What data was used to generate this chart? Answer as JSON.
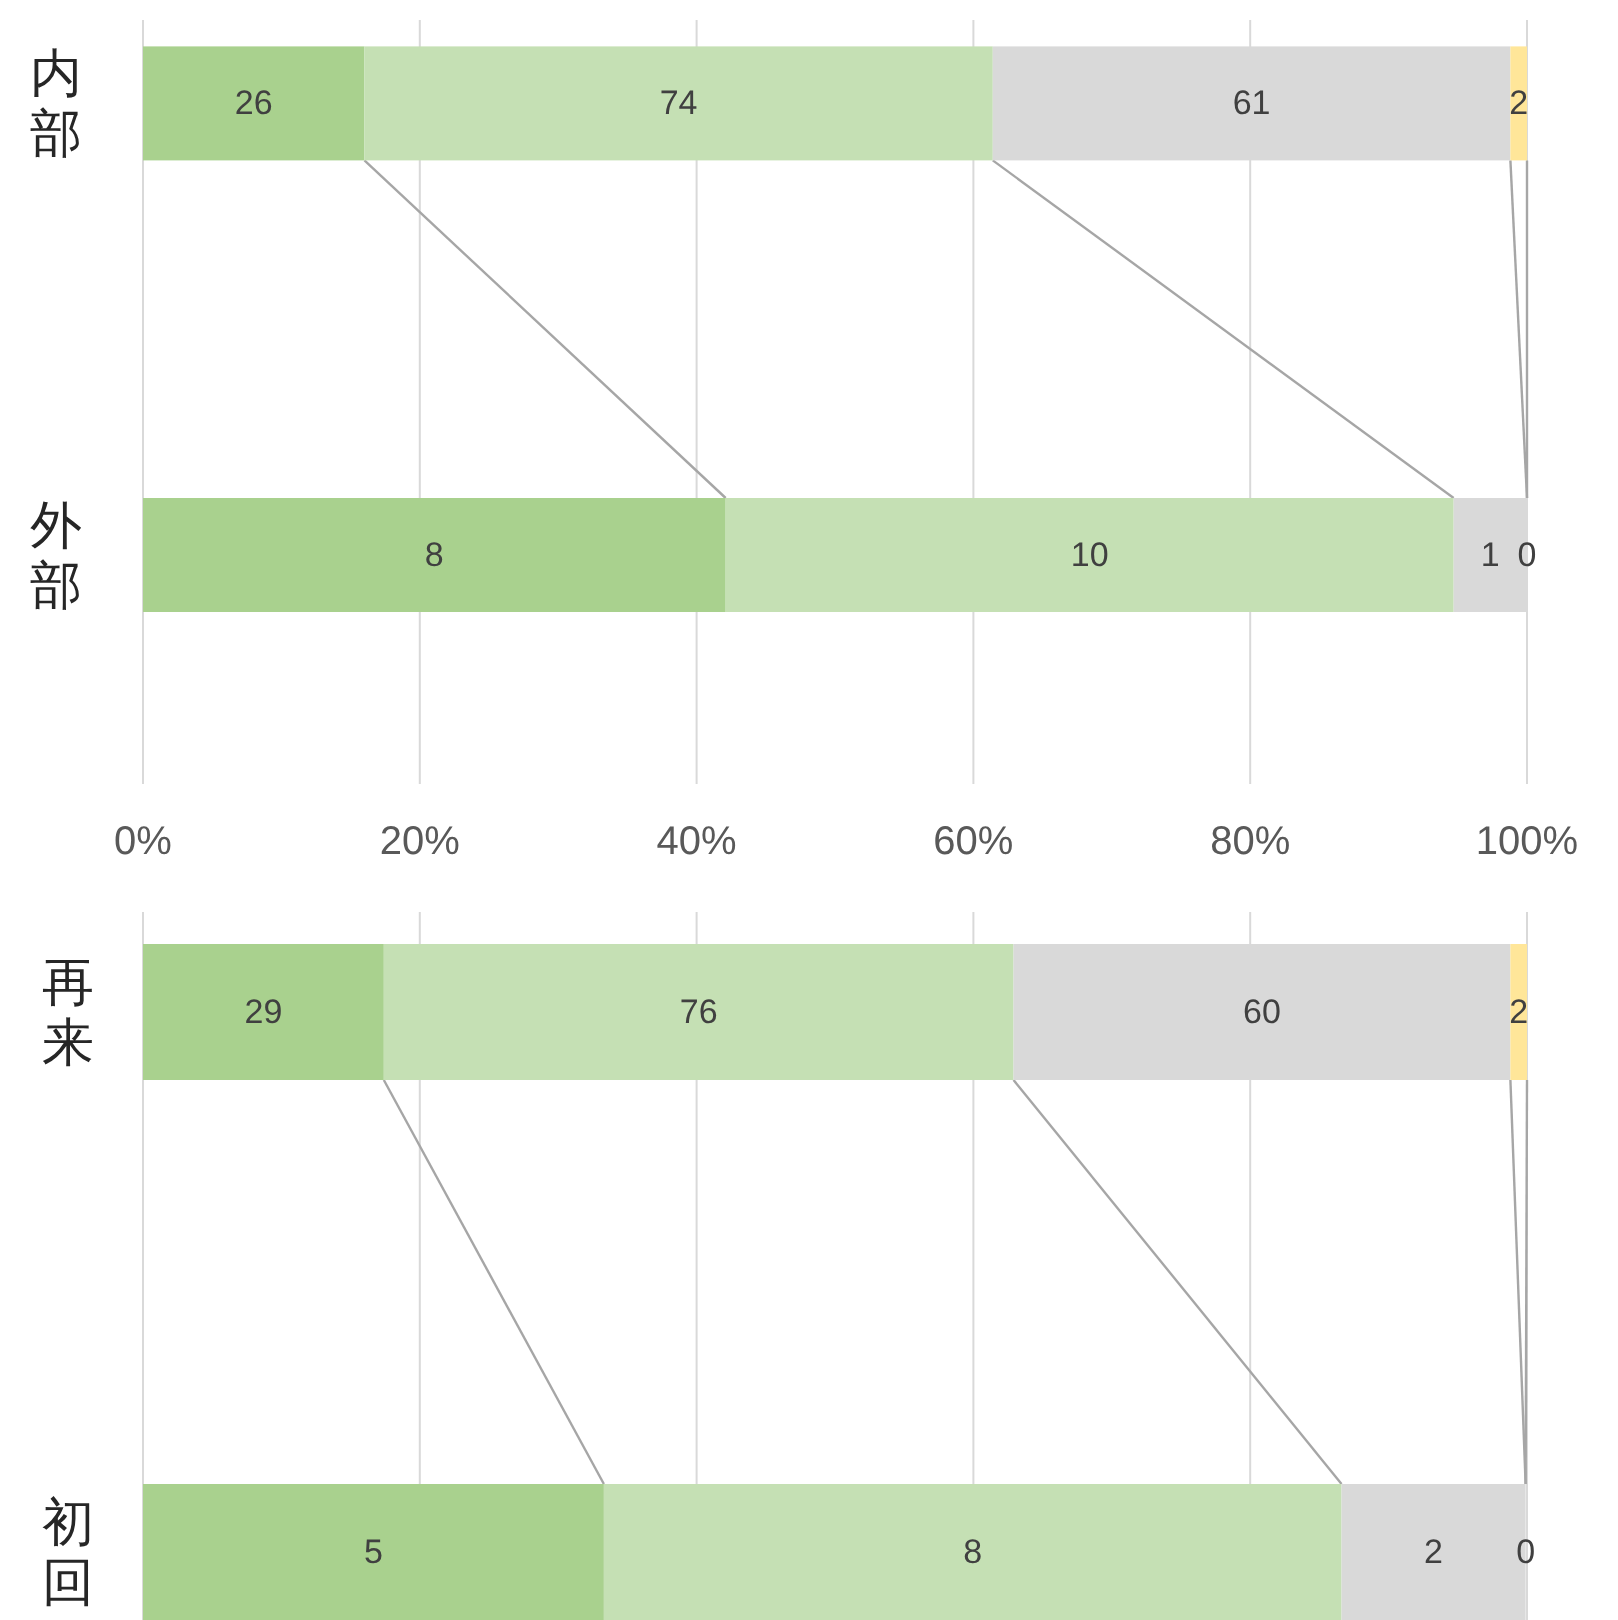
{
  "chart_data": [
    {
      "type": "bar",
      "orientation": "horizontal",
      "stacked": true,
      "categories": [
        "内部",
        "外部"
      ],
      "series": [
        {
          "color": "#a9d18e",
          "values": [
            16.0,
            42.1
          ]
        },
        {
          "color": "#c5e0b4",
          "values": [
            45.4,
            52.6
          ]
        },
        {
          "color": "#d9d9d9",
          "values": [
            37.4,
            5.3
          ]
        },
        {
          "color": "#ffe699",
          "values": [
            1.2,
            0
          ]
        }
      ],
      "annotations": [
        "26",
        "74",
        "61",
        {
          "text": "2",
          "y": "内部"
        },
        "8",
        "10",
        "1",
        {
          "text": "0",
          "y": "外部"
        }
      ],
      "xlim": [
        0,
        100
      ],
      "xticks": [
        {
          "value": 0,
          "label": "0%"
        },
        {
          "value": 20,
          "label": "20%"
        },
        {
          "value": 40,
          "label": "40%"
        },
        {
          "value": 60,
          "label": "60%"
        },
        {
          "value": 80,
          "label": "80%"
        },
        {
          "value": 100,
          "label": "100%"
        }
      ],
      "grid": "x"
    },
    {
      "type": "bar",
      "orientation": "horizontal",
      "stacked": true,
      "categories": [
        "再来",
        "初回"
      ],
      "series": [
        {
          "color": "#a9d18e",
          "values": [
            17.4,
            33.3
          ]
        },
        {
          "color": "#c5e0b4",
          "values": [
            45.5,
            53.3
          ]
        },
        {
          "color": "#d9d9d9",
          "values": [
            35.9,
            13.3
          ]
        },
        {
          "color": "#ffe699",
          "values": [
            1.2,
            0
          ]
        }
      ],
      "annotations": [
        "29",
        "76",
        "60",
        {
          "text": "2",
          "y": "再来"
        },
        "5",
        "8",
        "2",
        {
          "text": "0",
          "y": "初回"
        }
      ],
      "xlim": [
        0,
        100
      ],
      "xticks": [
        {
          "value": 0,
          "label": null
        },
        {
          "value": 20,
          "label": null
        },
        {
          "value": 40,
          "label": null
        },
        {
          "value": 60,
          "label": null
        },
        {
          "value": 80,
          "label": null
        },
        {
          "value": 100,
          "label": null
        }
      ],
      "grid": "x",
      "tick_labels": "y"
    }
  ]
}
